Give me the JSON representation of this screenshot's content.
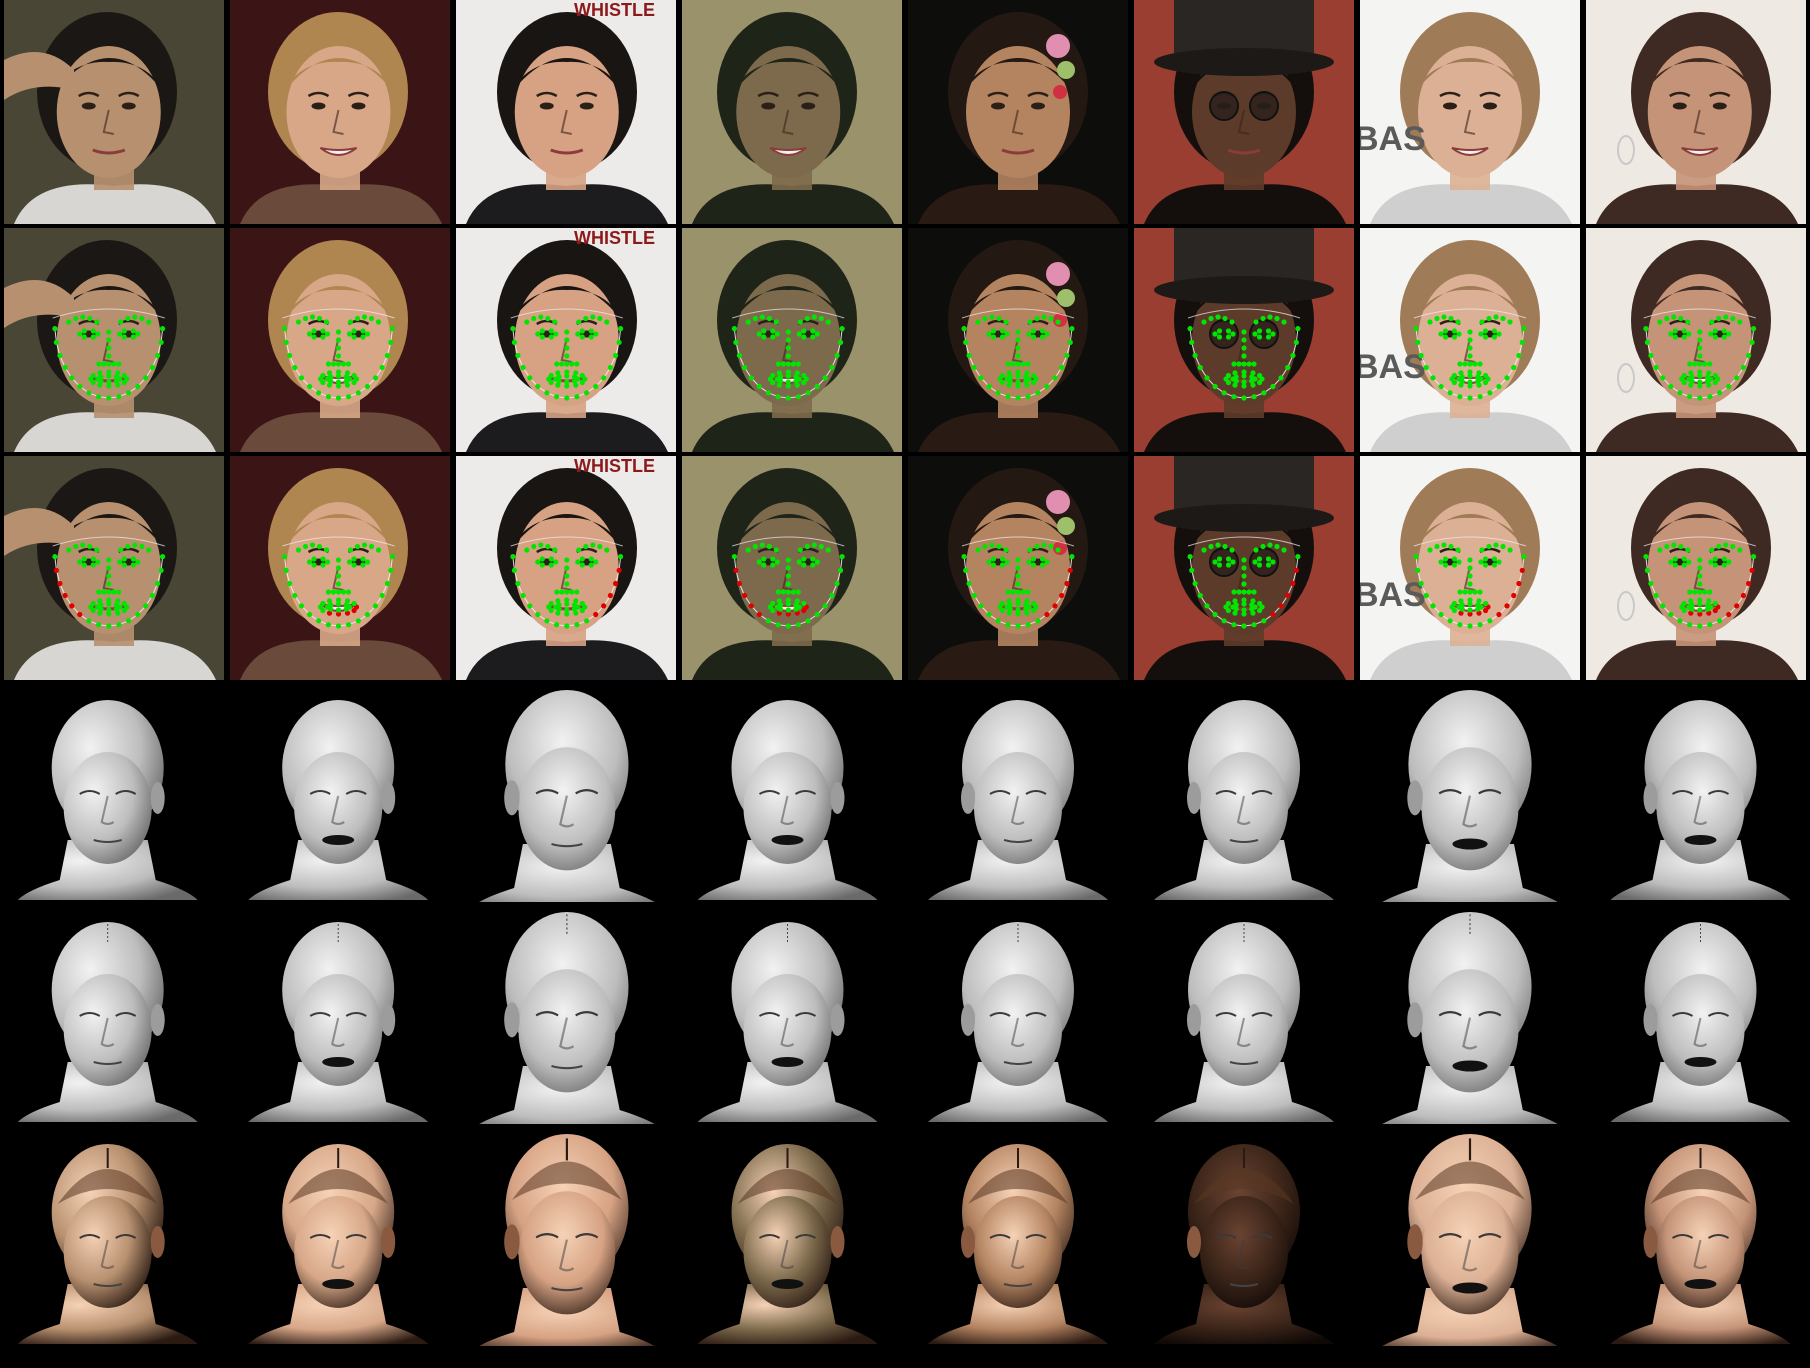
{
  "figure": {
    "rows": [
      {
        "id": "input-photo",
        "kind": "photo"
      },
      {
        "id": "landmarks-green",
        "kind": "landmarks"
      },
      {
        "id": "landmarks-error",
        "kind": "landmarks-error"
      },
      {
        "id": "shape-a",
        "kind": "mesh"
      },
      {
        "id": "shape-b",
        "kind": "mesh"
      },
      {
        "id": "textured",
        "kind": "textured"
      }
    ],
    "columns": [
      {
        "id": "male-hand-head",
        "bg": "#4a4636",
        "skin": "#b7906f",
        "hair": "#1b1714",
        "shirt": "#d8d6d2",
        "visible_text": "",
        "mouth_open": false,
        "yaw": -0.35
      },
      {
        "id": "blonde-woman",
        "bg": "#3b1515",
        "skin": "#d7a788",
        "hair": "#b08650",
        "shirt": "#6a4a3a",
        "visible_text": "",
        "mouth_open": true,
        "yaw": -0.1
      },
      {
        "id": "dark-hair-man",
        "bg": "#ecebea",
        "skin": "#d6a283",
        "hair": "#191513",
        "shirt": "#1c1c1f",
        "visible_text": "WHISTLE",
        "mouth_open": false,
        "yaw": 0.05
      },
      {
        "id": "woman-long-hair",
        "bg": "#9a926b",
        "skin": "#7d6a4c",
        "hair": "#1e2418",
        "shirt": "#1e2418",
        "visible_text": "",
        "mouth_open": true,
        "yaw": -0.25
      },
      {
        "id": "woman-flower",
        "bg": "#0d0d0b",
        "skin": "#b48461",
        "hair": "#241812",
        "shirt": "#2a1a14",
        "visible_text": "",
        "mouth_open": false,
        "yaw": 0.0
      },
      {
        "id": "top-hat-man",
        "bg": "#9a3e32",
        "skin": "#5c3b2a",
        "hair": "#140f0d",
        "shirt": "#140f0d",
        "visible_text": "",
        "mouth_open": false,
        "yaw": 0.0
      },
      {
        "id": "smiling-woman",
        "bg": "#f4f4f2",
        "skin": "#dcb094",
        "hair": "#a07b58",
        "shirt": "#cfcfcf",
        "visible_text": "BAS",
        "mouth_open": true,
        "yaw": 0.0
      },
      {
        "id": "curly-hair-woman",
        "bg": "#eee9e2",
        "skin": "#c59478",
        "hair": "#3e2a22",
        "shirt": "#3e2a22",
        "visible_text": "",
        "mouth_open": true,
        "yaw": 0.25
      }
    ],
    "colors": {
      "landmark_good": "#00e600",
      "landmark_bad": "#e00000",
      "contour_line": "#f0f0f0",
      "mesh_light": "#e2e2e2",
      "mesh_dark": "#6a6a6a",
      "background": "#000000"
    }
  }
}
